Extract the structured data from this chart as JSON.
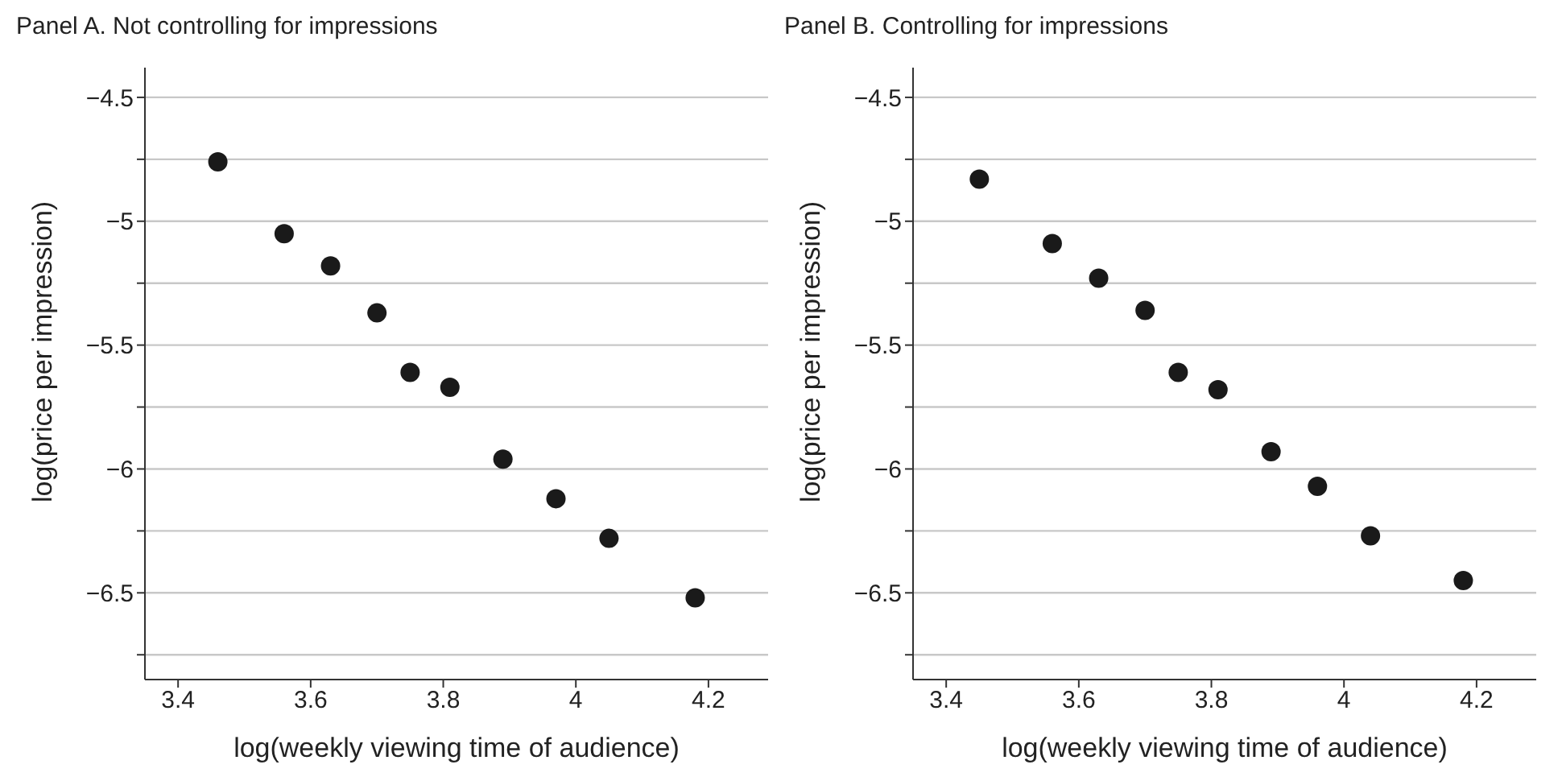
{
  "chart_data": [
    {
      "type": "scatter",
      "title": "Panel A. Not controlling for impressions",
      "xlabel": "log(weekly viewing time of audience)",
      "ylabel": "log(price per impression)",
      "x": [
        3.46,
        3.56,
        3.63,
        3.7,
        3.75,
        3.81,
        3.89,
        3.97,
        4.05,
        4.18
      ],
      "series": [
        {
          "color": "#1a1a1a",
          "values": [
            -4.76,
            -5.05,
            -5.18,
            -5.37,
            -5.61,
            -5.67,
            -5.96,
            -6.12,
            -6.28,
            -6.52
          ]
        }
      ],
      "xlim": [
        3.35,
        4.29
      ],
      "xticks": [
        3.4,
        3.6,
        3.8,
        4,
        4.2
      ],
      "ylim": [
        -6.85,
        -4.38
      ],
      "yticks": [
        {
          "value": -4.5,
          "label": "−4.5"
        },
        {
          "value": -4.75,
          "label": null
        },
        {
          "value": -5,
          "label": "−5"
        },
        {
          "value": -5.25,
          "label": null
        },
        {
          "value": -5.5,
          "label": "−5.5"
        },
        {
          "value": -5.75,
          "label": null
        },
        {
          "value": -6,
          "label": "−6"
        },
        {
          "value": -6.25,
          "label": null
        },
        {
          "value": -6.5,
          "label": "−6.5"
        },
        {
          "value": -6.75,
          "label": null
        }
      ],
      "grid": "y",
      "marker": "circle"
    },
    {
      "type": "scatter",
      "title": "Panel B. Controlling for impressions",
      "xlabel": "log(weekly viewing time of audience)",
      "ylabel": "log(price per impression)",
      "x": [
        3.45,
        3.56,
        3.63,
        3.7,
        3.75,
        3.81,
        3.89,
        3.96,
        4.04,
        4.18
      ],
      "series": [
        {
          "color": "#1a1a1a",
          "values": [
            -4.83,
            -5.09,
            -5.23,
            -5.36,
            -5.61,
            -5.68,
            -5.93,
            -6.07,
            -6.27,
            -6.45
          ]
        }
      ],
      "xlim": [
        3.35,
        4.29
      ],
      "xticks": [
        3.4,
        3.6,
        3.8,
        4,
        4.2
      ],
      "ylim": [
        -6.85,
        -4.38
      ],
      "yticks": [
        {
          "value": -4.5,
          "label": "−4.5"
        },
        {
          "value": -4.75,
          "label": null
        },
        {
          "value": -5,
          "label": "−5"
        },
        {
          "value": -5.25,
          "label": null
        },
        {
          "value": -5.5,
          "label": "−5.5"
        },
        {
          "value": -5.75,
          "label": null
        },
        {
          "value": -6,
          "label": "−6"
        },
        {
          "value": -6.25,
          "label": null
        },
        {
          "value": -6.5,
          "label": "−6.5"
        },
        {
          "value": -6.75,
          "label": null
        }
      ],
      "grid": "y",
      "marker": "circle"
    }
  ]
}
